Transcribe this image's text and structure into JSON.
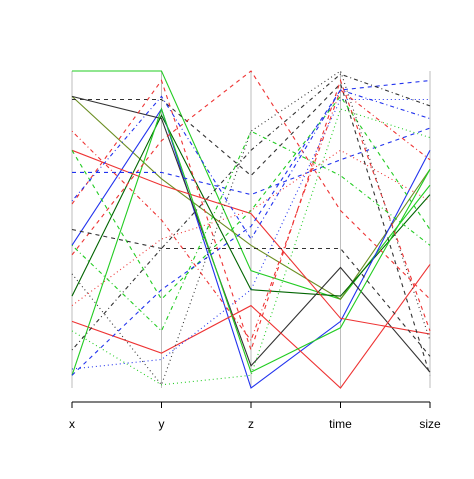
{
  "chart_data": {
    "type": "parallel",
    "categories": [
      "x",
      "y",
      "z",
      "time",
      "size"
    ],
    "ylim": [
      0,
      1
    ],
    "series": [
      {
        "color": "#22cc22",
        "linestyle": "solid",
        "values": [
          1,
          1,
          0.37,
          0.28,
          0.64
        ]
      },
      {
        "color": "#6b8e23",
        "linestyle": "solid",
        "values": [
          0.92,
          0.66,
          0.45,
          0.28,
          0.69
        ]
      },
      {
        "color": "#006400",
        "linestyle": "solid",
        "values": [
          0.29,
          0.86,
          0.31,
          0.29,
          0.61
        ]
      },
      {
        "color": "#2233ee",
        "linestyle": "solid",
        "values": [
          0.45,
          0.88,
          0,
          0.21,
          0.75
        ]
      },
      {
        "color": "#333333",
        "linestyle": "solid",
        "values": [
          0.92,
          0.85,
          0.07,
          0.38,
          0.05
        ]
      },
      {
        "color": "#ee3333",
        "linestyle": "solid",
        "values": [
          0.21,
          0.11,
          0.26,
          0,
          0.39
        ]
      },
      {
        "color": "#ee3333",
        "linestyle": "solid",
        "values": [
          0.75,
          0.64,
          0.55,
          0.22,
          0.17
        ]
      },
      {
        "color": "#22cc22",
        "linestyle": "solid",
        "values": [
          0.04,
          0.88,
          0.05,
          0.19,
          0.69
        ]
      },
      {
        "color": "#333333",
        "linestyle": "dashed",
        "values": [
          0.91,
          0.91,
          0.67,
          0.96,
          0.04
        ]
      },
      {
        "color": "#ee3333",
        "linestyle": "dashed",
        "values": [
          0.42,
          0.78,
          1,
          0.56,
          0.28
        ]
      },
      {
        "color": "#2233ee",
        "linestyle": "dashed",
        "values": [
          0.68,
          0.68,
          0.61,
          0.72,
          0.82
        ]
      },
      {
        "color": "#22cc22",
        "linestyle": "dashed",
        "values": [
          0.75,
          0.28,
          0.56,
          0.92,
          0.5
        ]
      },
      {
        "color": "#333333",
        "linestyle": "dashed",
        "values": [
          0.5,
          0.44,
          0.44,
          0.44,
          0.1
        ]
      },
      {
        "color": "#ee3333",
        "linestyle": "dashed",
        "values": [
          0.58,
          0.97,
          0.12,
          0.97,
          0.18
        ]
      },
      {
        "color": "#2233ee",
        "linestyle": "dashed",
        "values": [
          0.04,
          0.31,
          0.51,
          0.94,
          0.97
        ]
      },
      {
        "color": "#333333",
        "linestyle": "dotted",
        "values": [
          0.36,
          0.01,
          0.81,
          1,
          0.15
        ]
      },
      {
        "color": "#22cc22",
        "linestyle": "dotted",
        "values": [
          0.18,
          0.01,
          0.04,
          0.88,
          0.79
        ]
      },
      {
        "color": "#2233ee",
        "linestyle": "dotted",
        "values": [
          0.06,
          0.09,
          0.31,
          0.91,
          0.91
        ]
      },
      {
        "color": "#ee3333",
        "linestyle": "dotted",
        "values": [
          0.26,
          0.47,
          0.56,
          0.75,
          0.59
        ]
      },
      {
        "color": "#2233ee",
        "linestyle": "dotdash",
        "values": [
          0.59,
          0.92,
          0.47,
          0.94,
          0.85
        ]
      },
      {
        "color": "#333333",
        "linestyle": "dotdash",
        "values": [
          0.12,
          0.44,
          0.75,
          0.99,
          0.89
        ]
      },
      {
        "color": "#22cc22",
        "linestyle": "dotdash",
        "values": [
          0.45,
          0.18,
          0.81,
          0.67,
          0.45
        ]
      },
      {
        "color": "#ee3333",
        "linestyle": "dotdash",
        "values": [
          0.81,
          0.53,
          0.15,
          0.94,
          0.72
        ]
      }
    ]
  }
}
